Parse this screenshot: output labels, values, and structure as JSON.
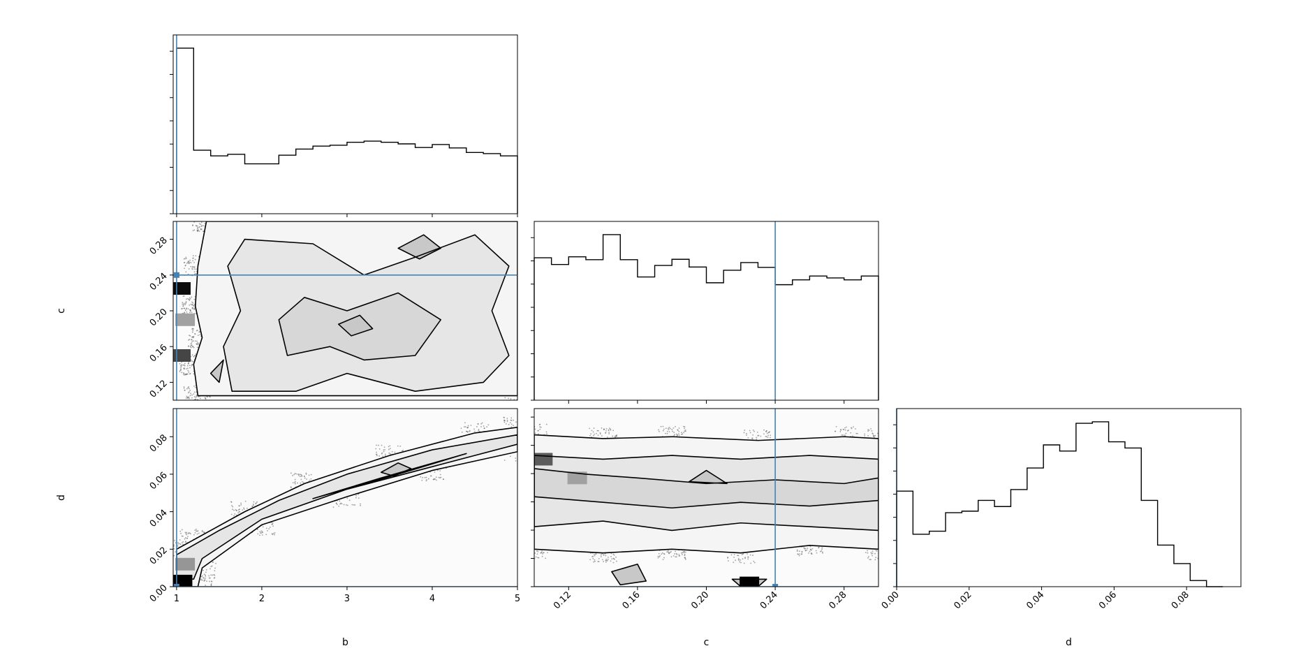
{
  "colors": {
    "truth_line": "#4682b4",
    "contour": "#000000",
    "histogram": "#000000",
    "axes": "#000000",
    "scatter": "#555555",
    "density_scale": [
      "#ffffff",
      "#000000"
    ]
  },
  "chart_data": [
    {
      "type": "histogram",
      "panel": "b-marginal",
      "parameter": "b",
      "xlim": [
        0.96,
        5.0
      ],
      "bin_edges": [
        1.0,
        1.2,
        1.4,
        1.6,
        1.8,
        2.0,
        2.2,
        2.4,
        2.6,
        2.8,
        3.0,
        3.2,
        3.4,
        3.6,
        3.8,
        4.0,
        4.2,
        4.4,
        4.6,
        4.8,
        5.0
      ],
      "counts": [
        730,
        280,
        255,
        262,
        220,
        220,
        258,
        285,
        298,
        302,
        315,
        320,
        315,
        308,
        292,
        305,
        290,
        270,
        265,
        255
      ],
      "truth": 1.0,
      "x_ticks": [
        "1",
        "2",
        "3",
        "4",
        "5"
      ],
      "xlabel": "",
      "ylabel": ""
    },
    {
      "type": "histogram",
      "panel": "c-marginal",
      "parameter": "c",
      "xlim": [
        0.1,
        0.3
      ],
      "bin_edges": [
        0.1,
        0.11,
        0.12,
        0.13,
        0.14,
        0.15,
        0.16,
        0.17,
        0.18,
        0.19,
        0.2,
        0.21,
        0.22,
        0.23,
        0.24,
        0.25,
        0.26,
        0.27,
        0.28,
        0.29,
        0.3
      ],
      "counts": [
        740,
        705,
        745,
        730,
        860,
        730,
        640,
        700,
        732,
        692,
        610,
        675,
        715,
        690,
        600,
        625,
        645,
        635,
        625,
        645
      ],
      "truth": 0.24,
      "x_ticks": [
        "0.12",
        "0.16",
        "0.20",
        "0.24",
        "0.28"
      ],
      "xlabel": "c",
      "ylabel": ""
    },
    {
      "type": "histogram",
      "panel": "d-marginal",
      "parameter": "d",
      "xlim": [
        0.0,
        0.095
      ],
      "bin_edges": [
        0.0,
        0.0045,
        0.009,
        0.0135,
        0.018,
        0.0225,
        0.027,
        0.0315,
        0.036,
        0.0405,
        0.045,
        0.0495,
        0.054,
        0.0585,
        0.063,
        0.0675,
        0.072,
        0.0765,
        0.081,
        0.0855,
        0.09
      ],
      "counts": [
        310,
        170,
        180,
        240,
        245,
        280,
        260,
        315,
        385,
        460,
        440,
        530,
        535,
        470,
        450,
        280,
        135,
        75,
        20,
        0
      ],
      "truth": 0.0,
      "x_ticks": [
        "0.00",
        "0.02",
        "0.04",
        "0.06",
        "0.08"
      ],
      "xlabel": "d",
      "ylabel": ""
    },
    {
      "type": "contour",
      "panel": "b-vs-c",
      "x_param": "b",
      "y_param": "c",
      "xlim": [
        0.96,
        5.0
      ],
      "ylim": [
        0.1,
        0.3
      ],
      "truth": [
        1.0,
        0.24
      ],
      "y_ticks": [
        "0.12",
        "0.16",
        "0.20",
        "0.24",
        "0.28"
      ],
      "xlabel": "",
      "ylabel": "c",
      "levels": [
        [
          [
            1.25,
            0.105
          ],
          [
            1.2,
            0.14
          ],
          [
            1.3,
            0.17
          ],
          [
            1.22,
            0.205
          ],
          [
            1.25,
            0.25
          ],
          [
            1.35,
            0.3
          ],
          [
            5.0,
            0.3
          ],
          [
            5.0,
            0.105
          ]
        ],
        [
          [
            1.65,
            0.11
          ],
          [
            1.55,
            0.16
          ],
          [
            1.75,
            0.2
          ],
          [
            1.6,
            0.25
          ],
          [
            1.8,
            0.28
          ],
          [
            2.6,
            0.275
          ],
          [
            3.2,
            0.24
          ],
          [
            3.8,
            0.26
          ],
          [
            4.5,
            0.285
          ],
          [
            4.9,
            0.25
          ],
          [
            4.7,
            0.2
          ],
          [
            4.9,
            0.15
          ],
          [
            4.6,
            0.12
          ],
          [
            3.8,
            0.11
          ],
          [
            3.0,
            0.13
          ],
          [
            2.4,
            0.11
          ]
        ],
        [
          [
            2.3,
            0.15
          ],
          [
            2.2,
            0.19
          ],
          [
            2.5,
            0.215
          ],
          [
            3.0,
            0.2
          ],
          [
            3.6,
            0.22
          ],
          [
            4.1,
            0.19
          ],
          [
            3.8,
            0.15
          ],
          [
            3.2,
            0.145
          ],
          [
            2.8,
            0.16
          ]
        ],
        [
          [
            1.4,
            0.13
          ],
          [
            1.55,
            0.145
          ],
          [
            1.5,
            0.12
          ]
        ],
        [
          [
            3.6,
            0.27
          ],
          [
            3.9,
            0.285
          ],
          [
            4.1,
            0.27
          ],
          [
            3.85,
            0.258
          ]
        ],
        [
          [
            2.9,
            0.185
          ],
          [
            3.15,
            0.195
          ],
          [
            3.3,
            0.18
          ],
          [
            3.05,
            0.172
          ]
        ]
      ],
      "density_hotspots": [
        {
          "x": 1.05,
          "y": 0.225,
          "level": 0.95
        },
        {
          "x": 1.05,
          "y": 0.15,
          "level": 0.7
        },
        {
          "x": 1.1,
          "y": 0.19,
          "level": 0.3
        }
      ]
    },
    {
      "type": "contour",
      "panel": "b-vs-d",
      "x_param": "b",
      "y_param": "d",
      "xlim": [
        0.96,
        5.0
      ],
      "ylim": [
        0.0,
        0.095
      ],
      "truth": [
        1.0,
        0.0
      ],
      "x_ticks": [
        "1",
        "2",
        "3",
        "4",
        "5"
      ],
      "y_ticks": [
        "0.00",
        "0.02",
        "0.04",
        "0.06",
        "0.08"
      ],
      "xlabel": "b",
      "ylabel": "d",
      "levels": [
        [
          [
            1.0,
            0.0
          ],
          [
            1.25,
            0.0
          ],
          [
            1.3,
            0.01
          ],
          [
            2.0,
            0.033
          ],
          [
            3.0,
            0.048
          ],
          [
            4.0,
            0.062
          ],
          [
            5.0,
            0.072
          ],
          [
            5.0,
            0.085
          ],
          [
            4.5,
            0.082
          ],
          [
            3.5,
            0.07
          ],
          [
            2.5,
            0.055
          ],
          [
            1.8,
            0.04
          ],
          [
            1.2,
            0.025
          ],
          [
            1.0,
            0.02
          ]
        ],
        [
          [
            1.0,
            0.005
          ],
          [
            1.2,
            0.004
          ],
          [
            1.3,
            0.015
          ],
          [
            2.0,
            0.036
          ],
          [
            3.0,
            0.052
          ],
          [
            4.0,
            0.064
          ],
          [
            5.0,
            0.076
          ],
          [
            5.0,
            0.081
          ],
          [
            4.0,
            0.073
          ],
          [
            3.0,
            0.06
          ],
          [
            2.2,
            0.046
          ],
          [
            1.5,
            0.03
          ],
          [
            1.0,
            0.017
          ]
        ],
        [
          [
            2.6,
            0.047
          ],
          [
            3.6,
            0.06
          ],
          [
            4.4,
            0.071
          ],
          [
            3.4,
            0.058
          ]
        ],
        [
          [
            3.4,
            0.061
          ],
          [
            3.6,
            0.066
          ],
          [
            3.75,
            0.063
          ],
          [
            3.55,
            0.059
          ]
        ]
      ],
      "density_hotspots": [
        {
          "x": 1.07,
          "y": 0.003,
          "level": 1.0
        },
        {
          "x": 1.1,
          "y": 0.012,
          "level": 0.35
        }
      ]
    },
    {
      "type": "contour",
      "panel": "c-vs-d",
      "x_param": "c",
      "y_param": "d",
      "xlim": [
        0.1,
        0.3
      ],
      "ylim": [
        0.0,
        0.095
      ],
      "truth": [
        0.24,
        0.0
      ],
      "x_ticks": [
        "0.12",
        "0.16",
        "0.20",
        "0.24",
        "0.28"
      ],
      "y_ticks": [],
      "xlabel": "c",
      "ylabel": "",
      "levels": [
        [
          [
            0.1,
            0.081
          ],
          [
            0.14,
            0.079
          ],
          [
            0.18,
            0.08
          ],
          [
            0.23,
            0.078
          ],
          [
            0.28,
            0.08
          ],
          [
            0.3,
            0.079
          ],
          [
            0.3,
            0.02
          ],
          [
            0.26,
            0.022
          ],
          [
            0.22,
            0.018
          ],
          [
            0.18,
            0.02
          ],
          [
            0.14,
            0.018
          ],
          [
            0.1,
            0.02
          ]
        ],
        [
          [
            0.1,
            0.07
          ],
          [
            0.14,
            0.068
          ],
          [
            0.18,
            0.07
          ],
          [
            0.22,
            0.068
          ],
          [
            0.26,
            0.07
          ],
          [
            0.3,
            0.068
          ],
          [
            0.3,
            0.03
          ],
          [
            0.26,
            0.032
          ],
          [
            0.22,
            0.034
          ],
          [
            0.18,
            0.03
          ],
          [
            0.14,
            0.035
          ],
          [
            0.1,
            0.032
          ]
        ],
        [
          [
            0.1,
            0.063
          ],
          [
            0.13,
            0.06
          ],
          [
            0.16,
            0.058
          ],
          [
            0.2,
            0.055
          ],
          [
            0.24,
            0.057
          ],
          [
            0.28,
            0.055
          ],
          [
            0.3,
            0.058
          ],
          [
            0.3,
            0.046
          ],
          [
            0.26,
            0.043
          ],
          [
            0.22,
            0.045
          ],
          [
            0.18,
            0.042
          ],
          [
            0.14,
            0.045
          ],
          [
            0.1,
            0.048
          ]
        ],
        [
          [
            0.19,
            0.056
          ],
          [
            0.2,
            0.062
          ],
          [
            0.212,
            0.055
          ]
        ],
        [
          [
            0.215,
            0.004
          ],
          [
            0.235,
            0.004
          ],
          [
            0.23,
            0.0
          ],
          [
            0.22,
            0.0
          ]
        ],
        [
          [
            0.145,
            0.008
          ],
          [
            0.16,
            0.012
          ],
          [
            0.165,
            0.003
          ],
          [
            0.15,
            0.001
          ]
        ]
      ],
      "density_hotspots": [
        {
          "x": 0.225,
          "y": 0.002,
          "level": 1.0
        },
        {
          "x": 0.105,
          "y": 0.068,
          "level": 0.6
        },
        {
          "x": 0.125,
          "y": 0.058,
          "level": 0.3
        }
      ]
    }
  ]
}
